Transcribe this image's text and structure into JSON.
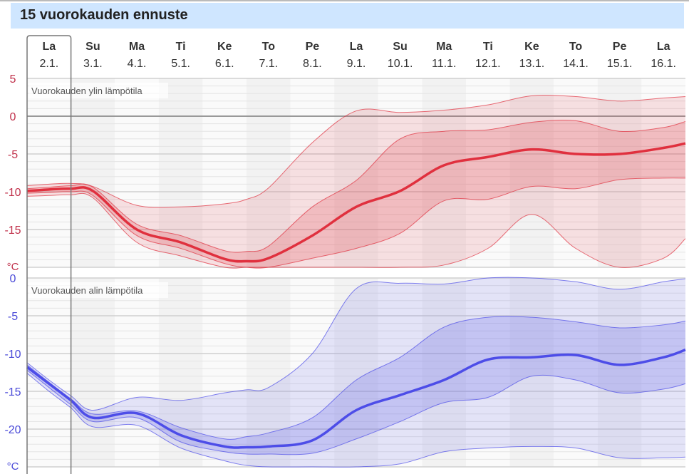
{
  "title": "15 vuorokauden ennuste",
  "days": [
    {
      "d": "La",
      "date": "2.1."
    },
    {
      "d": "Su",
      "date": "3.1."
    },
    {
      "d": "Ma",
      "date": "4.1."
    },
    {
      "d": "Ti",
      "date": "5.1."
    },
    {
      "d": "Ke",
      "date": "6.1."
    },
    {
      "d": "To",
      "date": "7.1."
    },
    {
      "d": "Pe",
      "date": "8.1."
    },
    {
      "d": "La",
      "date": "9.1."
    },
    {
      "d": "Su",
      "date": "10.1."
    },
    {
      "d": "Ma",
      "date": "11.1."
    },
    {
      "d": "Ti",
      "date": "12.1."
    },
    {
      "d": "Ke",
      "date": "13.1."
    },
    {
      "d": "To",
      "date": "14.1."
    },
    {
      "d": "Pe",
      "date": "15.1."
    },
    {
      "d": "La",
      "date": "16.1."
    }
  ],
  "selected_day": 0,
  "colors": {
    "max": "#e0303e",
    "min": "#4d4de8",
    "max_axis": "#c0304a",
    "min_axis": "#4a4ad8"
  },
  "chart_data": [
    {
      "type": "area",
      "title": "Vuorokauden ylin lämpötila",
      "unit": "°C",
      "ylim": [
        -20,
        5
      ],
      "yticks": [
        5,
        0,
        -5,
        -10,
        -15
      ],
      "x": [
        0,
        0.5,
        1,
        1.5,
        2.5,
        3.5,
        4.5,
        5,
        5.5,
        6.5,
        7.5,
        8.5,
        9.5,
        10.5,
        11.5,
        12.5,
        13.5,
        14.5,
        15
      ],
      "median": [
        -9.9,
        -9.7,
        -9.6,
        -9.9,
        -15,
        -16.7,
        -18.9,
        -19.2,
        -18.8,
        -15.8,
        -12,
        -9.9,
        -6.5,
        -5.4,
        -4.4,
        -5,
        -5,
        -4.2,
        -3.6
      ],
      "inner_upper": [
        -9.6,
        -9.4,
        -9.2,
        -9.4,
        -14.3,
        -15.8,
        -17.8,
        -17.9,
        -17.2,
        -12,
        -8.5,
        -3,
        -2,
        -1.8,
        -0.8,
        -0.6,
        -2,
        -1.5,
        -0.7
      ],
      "inner_lower": [
        -10.2,
        -10.1,
        -10,
        -10.5,
        -15.8,
        -17.5,
        -19.5,
        -20,
        -20,
        -18.8,
        -17.5,
        -15.5,
        -11.2,
        -11,
        -9.3,
        -9.6,
        -8.4,
        -8.2,
        -8.2
      ],
      "outer_upper": [
        -9.2,
        -9,
        -8.9,
        -9.3,
        -11.8,
        -12,
        -11.6,
        -11,
        -9.5,
        -3.5,
        0.7,
        0.5,
        0.8,
        1.5,
        2.7,
        2.6,
        2,
        2.4,
        2.6
      ],
      "outer_lower": [
        -10.6,
        -10.5,
        -10.4,
        -10.8,
        -16.7,
        -18.5,
        -20,
        -20,
        -20,
        -20,
        -20,
        -20,
        -19.7,
        -17.5,
        -13,
        -17.5,
        -20,
        -18.8,
        -16.2
      ]
    },
    {
      "type": "area",
      "title": "Vuorokauden alin lämpötila",
      "unit": "°C",
      "ylim": [
        -25,
        0
      ],
      "yticks": [
        0,
        -5,
        -10,
        -15,
        -20
      ],
      "x": [
        0,
        0.5,
        1,
        1.5,
        2.5,
        3.5,
        4.5,
        5,
        5.5,
        6.5,
        7.5,
        8.5,
        9.5,
        10.5,
        11.5,
        12.5,
        13.5,
        14.5,
        15
      ],
      "median": [
        -11.8,
        -14,
        -16.2,
        -18.5,
        -17.9,
        -20.8,
        -22.3,
        -22.4,
        -22.3,
        -21.5,
        -17.5,
        -15.5,
        -13.5,
        -10.8,
        -10.5,
        -10.2,
        -11.5,
        -10.5,
        -9.5
      ],
      "inner_upper": [
        -11.5,
        -13.8,
        -16,
        -18,
        -17.6,
        -19.8,
        -21.3,
        -21,
        -20.5,
        -18.5,
        -13.5,
        -10.5,
        -6.5,
        -5.2,
        -5.2,
        -5.8,
        -6.6,
        -6.2,
        -5.7
      ],
      "inner_lower": [
        -12.2,
        -14.5,
        -16.8,
        -19,
        -18.5,
        -21.7,
        -23,
        -23.3,
        -23.3,
        -23.2,
        -21.3,
        -19,
        -16.5,
        -15.8,
        -13,
        -13.5,
        -15.2,
        -14.7,
        -14
      ],
      "outer_upper": [
        -11.2,
        -13.5,
        -15.6,
        -17.5,
        -15.8,
        -16.2,
        -15.2,
        -14.8,
        -14.5,
        -10,
        -1.4,
        -0.7,
        -0.8,
        0,
        0,
        -0.5,
        -1.5,
        -0.5,
        -0.1
      ],
      "outer_lower": [
        -12.6,
        -15,
        -17.2,
        -19.7,
        -19.5,
        -22.5,
        -24.2,
        -24.8,
        -25,
        -25,
        -25,
        -24.6,
        -23,
        -22.5,
        -22.3,
        -22.5,
        -23.8,
        -23.8,
        -23.7
      ]
    }
  ]
}
